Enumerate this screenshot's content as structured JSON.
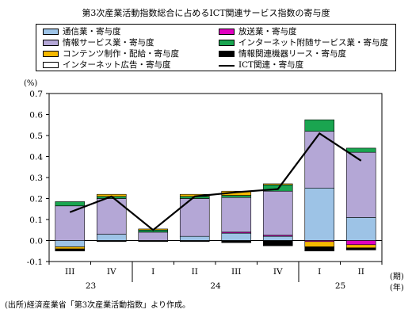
{
  "page": {
    "source_note": "(出所)経済産業省「第3次産業活動指数」より作成。"
  },
  "chart_data": {
    "type": "bar",
    "title": "第3次産業活動指数総合に占めるICT関連サービス指数の寄与度",
    "ylabel": "(%)",
    "xlabel": "(期)",
    "xlabel2": "(年)",
    "ylim": [
      -0.1,
      0.7
    ],
    "yticks": [
      "0.7",
      "0.6",
      "0.5",
      "0.4",
      "0.3",
      "0.2",
      "0.1",
      "0.0",
      "-0.1"
    ],
    "categories": [
      "III",
      "IV",
      "I",
      "II",
      "III",
      "IV",
      "I",
      "II"
    ],
    "years": [
      "23",
      "24",
      "25"
    ],
    "series": [
      {
        "name": "通信業・寄与度",
        "color": "#9dc3e6",
        "values": [
          -0.03,
          0.03,
          0.0,
          0.02,
          0.035,
          0.02,
          0.25,
          0.11
        ]
      },
      {
        "name": "放送業・寄与度",
        "color": "#e000c0",
        "values": [
          0.0,
          0.0,
          0.0,
          0.0,
          0.005,
          0.005,
          -0.005,
          -0.02
        ]
      },
      {
        "name": "情報サービス業・寄与度",
        "color": "#b4a7d6",
        "values": [
          0.165,
          0.17,
          0.04,
          0.18,
          0.165,
          0.21,
          0.27,
          0.31
        ]
      },
      {
        "name": "インターネット附随サービス業・寄与度",
        "color": "#1aa550",
        "values": [
          0.02,
          0.01,
          0.01,
          0.01,
          0.01,
          0.03,
          0.055,
          0.02
        ]
      },
      {
        "name": "コンテンツ制作・配給・寄与度",
        "color": "#f5b800",
        "values": [
          -0.01,
          0.01,
          0.005,
          0.01,
          0.02,
          0.005,
          -0.025,
          -0.015
        ]
      },
      {
        "name": "情報関連機器リース・寄与度",
        "color": "#000000",
        "values": [
          -0.01,
          -0.005,
          -0.005,
          -0.005,
          -0.01,
          -0.025,
          -0.02,
          -0.01
        ]
      },
      {
        "name": "インターネット広告・寄与度",
        "color": "#ffffff",
        "values": [
          0.0,
          0.0,
          0.0,
          0.0,
          0.0,
          0.0,
          0.0,
          0.0
        ]
      }
    ],
    "line": {
      "name": "ICT関連・寄与度",
      "color": "#000000",
      "values": [
        0.135,
        0.21,
        0.05,
        0.21,
        0.23,
        0.245,
        0.51,
        0.38
      ]
    },
    "legend": "top"
  }
}
